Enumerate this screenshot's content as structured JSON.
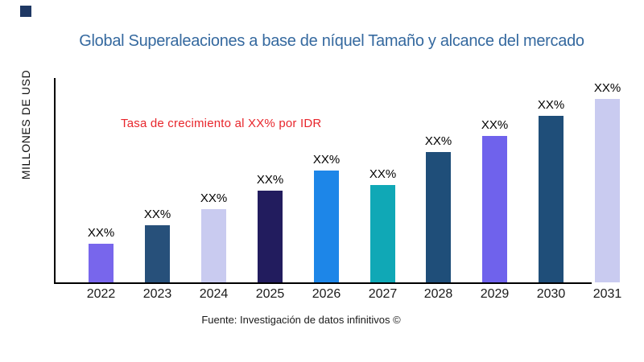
{
  "logo_color": "#1F3864",
  "title": {
    "text": "Global Superaleaciones a base de níquel Tamaño y alcance del mercado",
    "color": "#35699F"
  },
  "annotation": {
    "text": "Tasa de crecimiento al XX% por IDR",
    "color": "#E8262C"
  },
  "y_axis_label": "MILLONES DE USD",
  "footer": "Fuente: Investigación de datos infinitivos ©",
  "chart_data": {
    "type": "bar",
    "title": "Global Superaleaciones a base de níquel Tamaño y alcance del mercado",
    "xlabel": "",
    "ylabel": "MILLONES DE USD",
    "categories": [
      "2022",
      "2023",
      "2024",
      "2025",
      "2026",
      "2027",
      "2028",
      "2029",
      "2030",
      "2031"
    ],
    "values": [
      21,
      31,
      40,
      50,
      61,
      53,
      71,
      80,
      91,
      100
    ],
    "values_note": "relative bar heights (0-100 scale); actual figures masked in source as XX%",
    "value_labels": [
      "XX%",
      "XX%",
      "XX%",
      "XX%",
      "XX%",
      "XX%",
      "XX%",
      "XX%",
      "XX%",
      "XX%"
    ],
    "bar_colors": [
      "#7866EC",
      "#27507A",
      "#C9CBF0",
      "#221C5E",
      "#1D86E8",
      "#10A8B6",
      "#1F4E79",
      "#6F62EC",
      "#1F4E79",
      "#C9CBF0"
    ],
    "axis_color": "#000000",
    "grid": false,
    "legend": false,
    "ylim": [
      0,
      110
    ]
  }
}
